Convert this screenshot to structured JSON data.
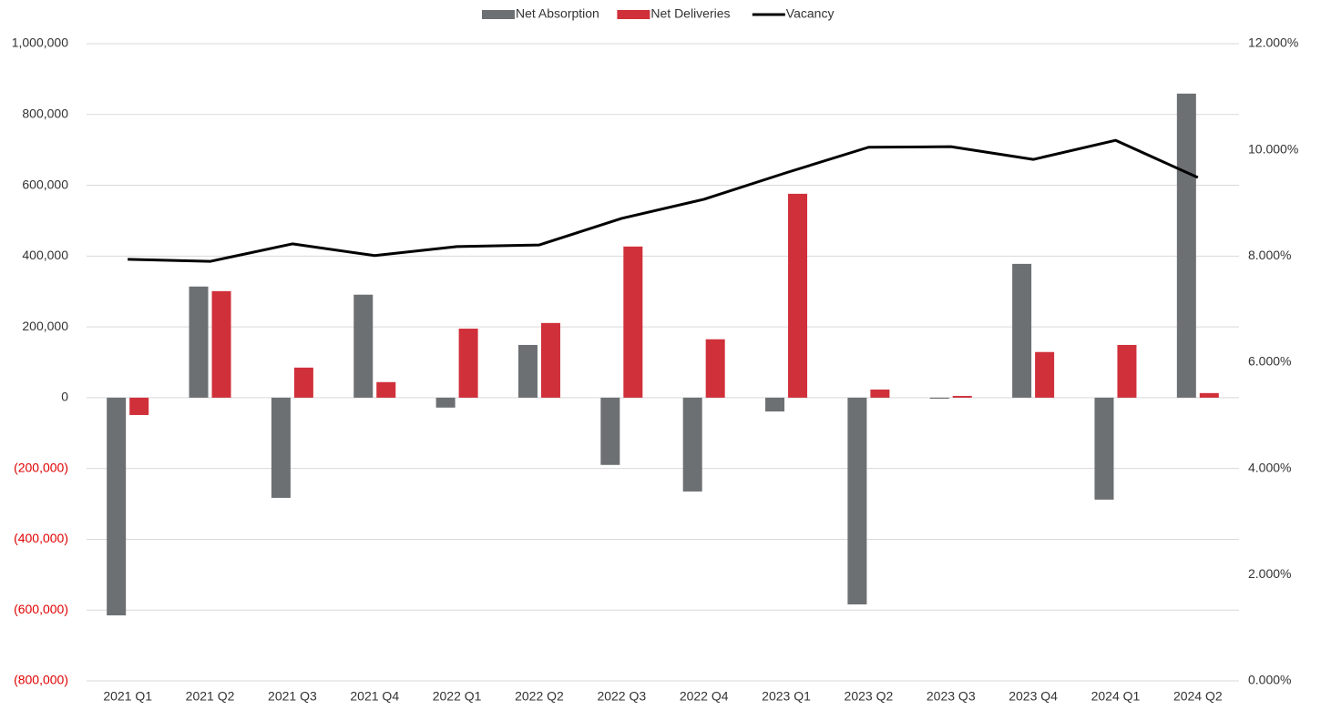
{
  "chart_data": {
    "type": "bar",
    "categories": [
      "2021 Q1",
      "2021 Q2",
      "2021 Q3",
      "2021 Q4",
      "2022 Q1",
      "2022 Q2",
      "2022 Q3",
      "2022 Q4",
      "2023 Q1",
      "2023 Q2",
      "2023 Q3",
      "2023 Q4",
      "2024 Q1",
      "2024 Q2"
    ],
    "series": [
      {
        "name": "Net Absorption",
        "type": "bar",
        "color": "#6d7072",
        "values": [
          -615000,
          314000,
          -283000,
          291000,
          -28000,
          149000,
          -190000,
          -265000,
          -39000,
          -584000,
          -3000,
          378000,
          -288000,
          859000
        ]
      },
      {
        "name": "Net Deliveries",
        "type": "bar",
        "color": "#d0303a",
        "values": [
          -49000,
          301000,
          85000,
          44000,
          195000,
          211000,
          427000,
          165000,
          576000,
          23000,
          5000,
          129000,
          149000,
          13000
        ]
      },
      {
        "name": "Vacancy",
        "type": "line",
        "axis": "y2",
        "color": "#000000",
        "values": [
          7.94,
          7.9,
          8.23,
          8.01,
          8.18,
          8.21,
          8.71,
          9.07,
          9.57,
          10.05,
          10.06,
          9.82,
          10.18,
          9.48
        ]
      }
    ],
    "ylim": [
      -800000,
      1000000
    ],
    "yticks": [
      {
        "value": -800000,
        "label": "(800,000)"
      },
      {
        "value": -600000,
        "label": "(600,000)"
      },
      {
        "value": -400000,
        "label": "(400,000)"
      },
      {
        "value": -200000,
        "label": "(200,000)"
      },
      0,
      {
        "value": 200000,
        "label": "200,000"
      },
      {
        "value": 400000,
        "label": "400,000"
      },
      {
        "value": 600000,
        "label": "600,000"
      },
      {
        "value": 800000,
        "label": "800,000"
      },
      {
        "value": 1000000,
        "label": "1,000,000"
      }
    ],
    "y2lim": [
      0,
      12
    ],
    "y2ticks": [
      {
        "value": 0,
        "label": "0.000%"
      },
      {
        "value": 2,
        "label": "2.000%"
      },
      {
        "value": 4,
        "label": "4.000%"
      },
      {
        "value": 6,
        "label": "6.000%"
      },
      {
        "value": 8,
        "label": "8.000%"
      },
      {
        "value": 10,
        "label": "10.000%"
      },
      {
        "value": 12,
        "label": "12.000%"
      }
    ],
    "negative_tick_color": "#e00000",
    "grid": true,
    "legend": "top"
  }
}
